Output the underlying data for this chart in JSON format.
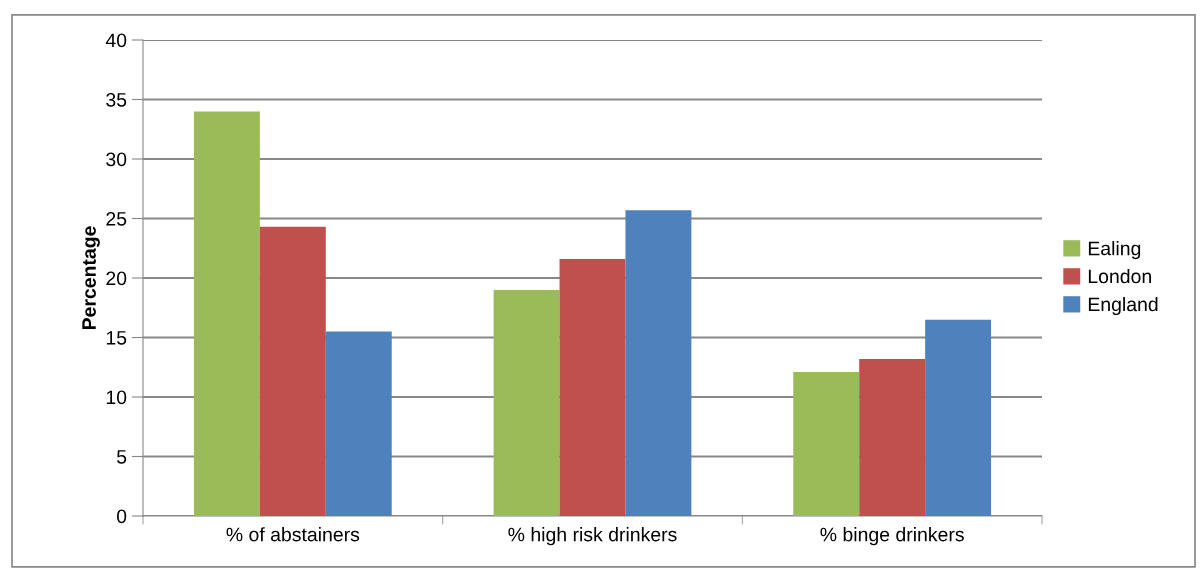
{
  "chart_data": {
    "type": "bar",
    "ylabel": "Percentage",
    "categories": [
      "% of abstainers",
      "% high risk drinkers",
      "% binge drinkers"
    ],
    "series": [
      {
        "name": "Ealing",
        "color": "#9bbb59",
        "values": [
          34,
          19,
          12.1
        ]
      },
      {
        "name": "London",
        "color": "#c0504d",
        "values": [
          24.3,
          21.6,
          13.2
        ]
      },
      {
        "name": "England",
        "color": "#4f81bd",
        "values": [
          15.5,
          25.7,
          16.5
        ]
      }
    ],
    "ylim": [
      0,
      40
    ],
    "yticks": [
      0,
      5,
      10,
      15,
      20,
      25,
      30,
      35,
      40
    ],
    "grid": "y",
    "legend": "right"
  }
}
